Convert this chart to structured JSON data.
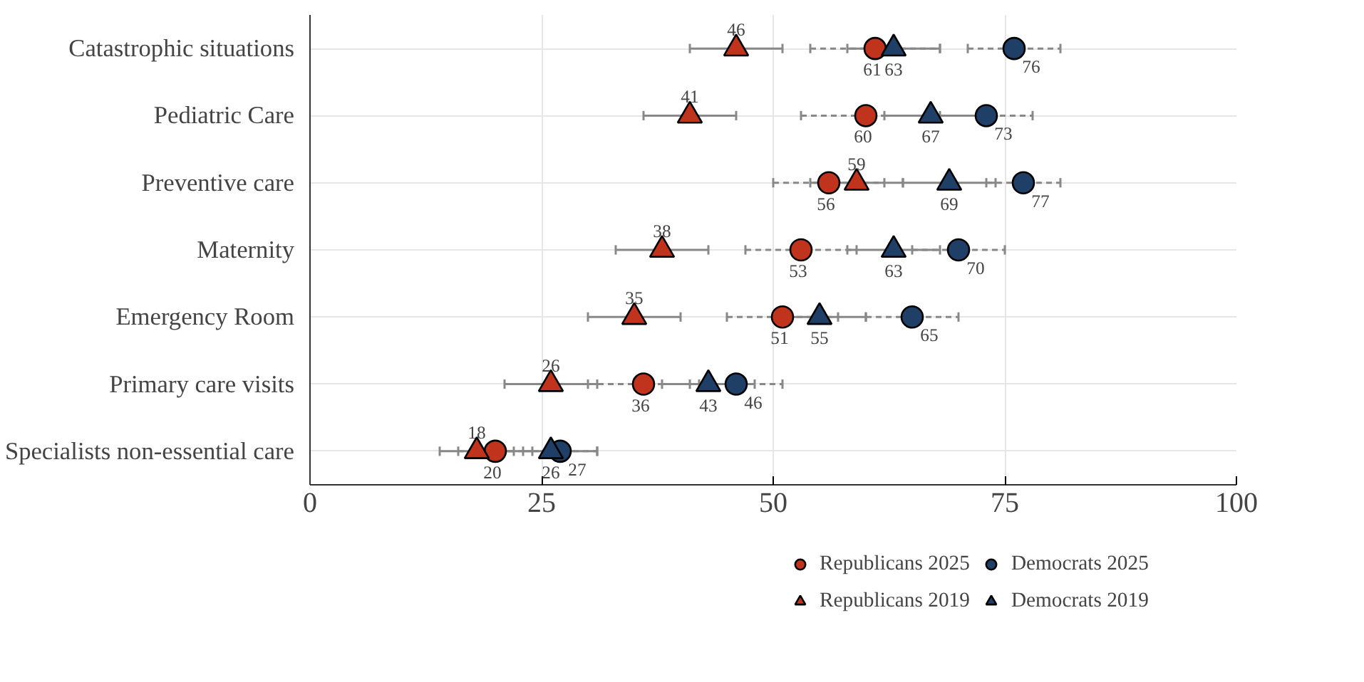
{
  "chart_data": {
    "type": "scatter",
    "categories": [
      "Catastrophic situations",
      "Pediatric Care",
      "Preventive care",
      "Maternity",
      "Emergency Room",
      "Primary care visits",
      "Specialists non-essential care"
    ],
    "orientation": "horizontal",
    "xlim": [
      0,
      100
    ],
    "xticks": [
      0,
      25,
      50,
      75,
      100
    ],
    "series": [
      {
        "name": "Republicans 2025",
        "color": "#c0341d",
        "marker": "circle",
        "line_style": "dashed",
        "values": [
          61,
          60,
          56,
          53,
          51,
          36,
          20
        ],
        "errors": [
          7,
          7,
          6,
          6,
          6,
          6,
          4
        ]
      },
      {
        "name": "Democrats 2025",
        "color": "#1f3f66",
        "marker": "circle",
        "line_style": "dashed",
        "values": [
          76,
          73,
          77,
          70,
          65,
          46,
          27
        ],
        "errors": [
          5,
          5,
          4,
          5,
          5,
          5,
          4
        ]
      },
      {
        "name": "Republicans 2019",
        "color": "#c0341d",
        "marker": "triangle",
        "line_style": "solid",
        "values": [
          46,
          41,
          59,
          38,
          35,
          26,
          18
        ],
        "errors": [
          5,
          5,
          5,
          5,
          5,
          5,
          4
        ]
      },
      {
        "name": "Democrats 2019",
        "color": "#1f3f66",
        "marker": "triangle",
        "line_style": "solid",
        "values": [
          63,
          67,
          69,
          63,
          55,
          43,
          26
        ],
        "errors": [
          5,
          5,
          5,
          5,
          5,
          5,
          5
        ]
      }
    ],
    "data_labels": true,
    "grid": true,
    "legend": "bottom"
  }
}
